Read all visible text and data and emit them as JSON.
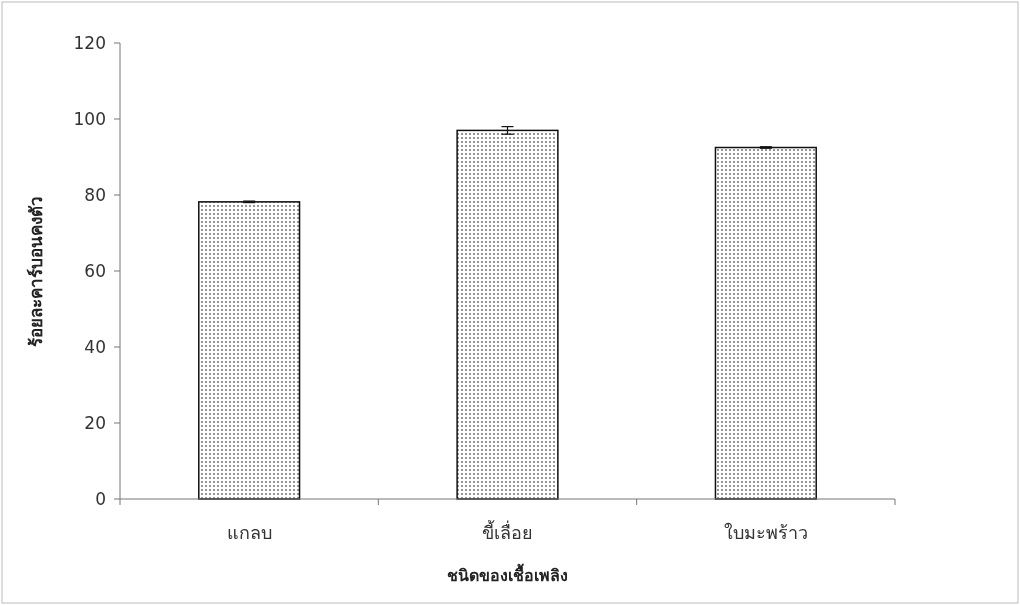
{
  "chart_data": {
    "type": "bar",
    "xlabel": "ชนิดของเชื้อเพลิง",
    "ylabel": "ร้อยละคาร์บอนคงตัว",
    "categories": [
      "แกลบ",
      "ขี้เลื่อย",
      "ใบมะพร้าว"
    ],
    "values": [
      78.2,
      97.0,
      92.5
    ],
    "errors": [
      0.2,
      1.0,
      0.2
    ],
    "color": "#111111",
    "ylim": [
      0,
      120
    ],
    "yticks": [
      0,
      20,
      40,
      60,
      80,
      100,
      120
    ],
    "grid": false
  }
}
